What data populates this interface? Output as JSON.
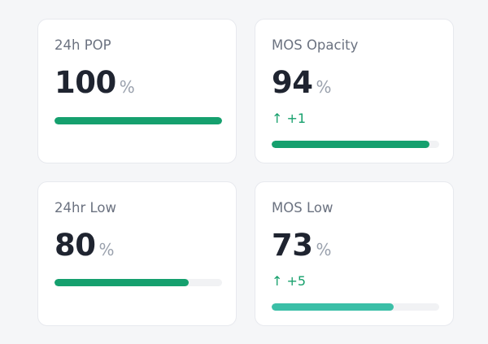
{
  "colors": {
    "green": "#15a06e",
    "teal": "#3bbfa7"
  },
  "cards": [
    {
      "title": "24h POP",
      "value": "100",
      "unit": "%",
      "progress": 100,
      "color": "#15a06e"
    },
    {
      "title": "MOS Opacity",
      "value": "94",
      "unit": "%",
      "delta_icon": "arrow-up-icon",
      "delta": "↑ +1",
      "progress": 94,
      "color": "#15a06e"
    },
    {
      "title": "24hr Low",
      "value": "80",
      "unit": "%",
      "progress": 80,
      "color": "#15a06e"
    },
    {
      "title": "MOS Low",
      "value": "73",
      "unit": "%",
      "delta_icon": "arrow-up-icon",
      "delta": "↑ +5",
      "progress": 73,
      "color": "#3bbfa7"
    }
  ]
}
